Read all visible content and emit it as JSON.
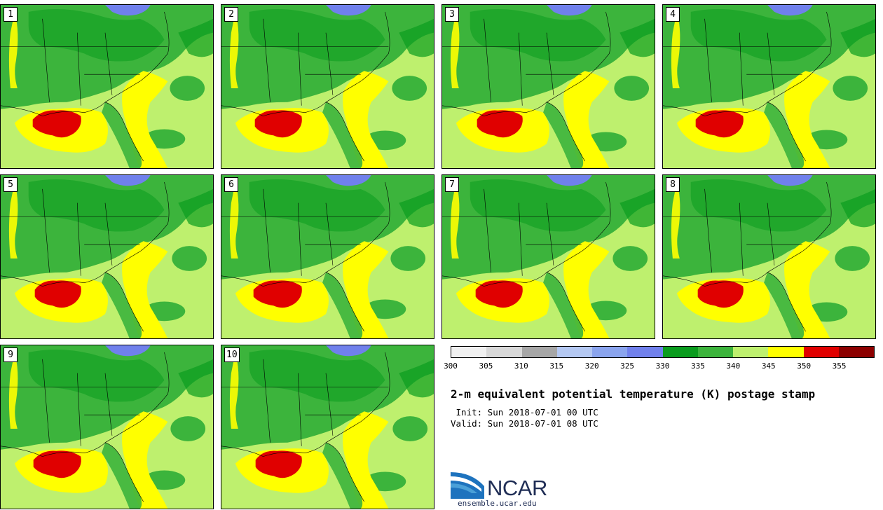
{
  "panels": [
    {
      "label": "1"
    },
    {
      "label": "2"
    },
    {
      "label": "3"
    },
    {
      "label": "4"
    },
    {
      "label": "5"
    },
    {
      "label": "6"
    },
    {
      "label": "7"
    },
    {
      "label": "8"
    },
    {
      "label": "9"
    },
    {
      "label": "10"
    }
  ],
  "colorbar": {
    "ticks": [
      "300",
      "305",
      "310",
      "315",
      "320",
      "325",
      "330",
      "335",
      "340",
      "345",
      "350",
      "355"
    ],
    "colors": [
      "#f0f0f0",
      "#d8d8d8",
      "#a6a6a6",
      "#b4c8f2",
      "#8aa4ee",
      "#7080ec",
      "#0a9c1e",
      "#3cb43c",
      "#bef06e",
      "#ffff00",
      "#e00000",
      "#8c0000"
    ]
  },
  "palette": {
    "background": "#bef06e",
    "green_dark": "#3cb43c",
    "green_darkest": "#0a9c1e",
    "yellow": "#ffff00",
    "red": "#e00000",
    "blue": "#7080ec"
  },
  "title": "2-m equivalent potential temperature (K) postage stamp",
  "init": " Init: Sun 2018-07-01 00 UTC",
  "valid": "Valid: Sun 2018-07-01 08 UTC",
  "logo": {
    "name": "NCAR",
    "url": "ensemble.ucar.edu"
  }
}
